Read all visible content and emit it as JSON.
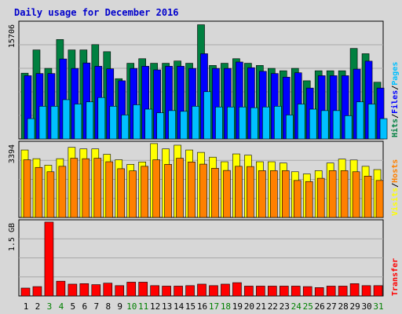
{
  "title": "Daily usage for December 2016",
  "colors": {
    "background": "#d7d7d7",
    "panel_border": "#000000",
    "gridline": "#a8a8a8",
    "title": "#0000cc",
    "hits": "#008040",
    "files": "#0000ff",
    "pages": "#00c0ff",
    "visits": "#ffff00",
    "hosts": "#ff8000",
    "transfer": "#ff0000",
    "weekend_label": "#008000",
    "weekday_label": "#000000"
  },
  "chart_data": [
    {
      "type": "bar",
      "panel": "hits_files_pages",
      "ylabel": "15706",
      "ylim": [
        0,
        15706
      ],
      "grid": true,
      "legend": [
        "Hits",
        "Files",
        "Pages"
      ],
      "legend_placement": "right-vertical",
      "categories": [
        "1",
        "2",
        "3",
        "4",
        "5",
        "6",
        "7",
        "8",
        "9",
        "10",
        "11",
        "12",
        "13",
        "14",
        "15",
        "16",
        "17",
        "18",
        "19",
        "20",
        "21",
        "22",
        "23",
        "24",
        "25",
        "26",
        "27",
        "28",
        "29",
        "30",
        "31"
      ],
      "series": [
        {
          "name": "Hits",
          "values": [
            9045,
            12244,
            9708,
            13674,
            12244,
            12244,
            12976,
            12000,
            8287,
            10409,
            11036,
            10409,
            10409,
            10720,
            10409,
            15706,
            10107,
            10409,
            11036,
            10409,
            10107,
            9708,
            9377,
            9708,
            8000,
            9377,
            9377,
            9377,
            12446,
            11722,
            7800
          ]
        },
        {
          "name": "Files",
          "values": [
            8700,
            9000,
            9000,
            11000,
            9700,
            10450,
            10000,
            9645,
            8000,
            9700,
            10000,
            9500,
            10000,
            10000,
            9700,
            11722,
            9700,
            9700,
            10580,
            9800,
            9300,
            9000,
            8500,
            9100,
            7000,
            8700,
            8700,
            8700,
            9600,
            10700,
            7000
          ]
        },
        {
          "name": "Pages",
          "values": [
            2800,
            4500,
            4500,
            5400,
            4800,
            5100,
            5700,
            4500,
            3300,
            4700,
            4100,
            3600,
            3900,
            3800,
            4500,
            6500,
            4400,
            4400,
            4400,
            4300,
            4400,
            4500,
            3300,
            4800,
            4100,
            3900,
            3900,
            3200,
            5100,
            4800,
            2800
          ]
        }
      ]
    },
    {
      "type": "bar",
      "panel": "visits_hosts",
      "ylabel": "3394",
      "ylim": [
        0,
        3394
      ],
      "grid": true,
      "legend": [
        "Visits",
        "Hosts"
      ],
      "legend_placement": "right-vertical",
      "categories": [
        "1",
        "2",
        "3",
        "4",
        "5",
        "6",
        "7",
        "8",
        "9",
        "10",
        "11",
        "12",
        "13",
        "14",
        "15",
        "16",
        "17",
        "18",
        "19",
        "20",
        "21",
        "22",
        "23",
        "24",
        "25",
        "26",
        "27",
        "28",
        "29",
        "30",
        "31"
      ],
      "series": [
        {
          "name": "Visits",
          "values": [
            3100,
            2700,
            2400,
            2700,
            3220,
            3150,
            3150,
            2900,
            2650,
            2440,
            2550,
            3394,
            3150,
            3320,
            3100,
            2990,
            2770,
            2560,
            2920,
            2860,
            2560,
            2560,
            2500,
            2100,
            2000,
            2150,
            2500,
            2680,
            2640,
            2350,
            2200
          ]
        },
        {
          "name": "Hosts",
          "values": [
            2650,
            2300,
            2100,
            2350,
            2720,
            2700,
            2720,
            2560,
            2240,
            2140,
            2350,
            2650,
            2440,
            2720,
            2550,
            2450,
            2260,
            2160,
            2350,
            2340,
            2150,
            2150,
            2150,
            1700,
            1650,
            1800,
            2150,
            2150,
            2100,
            1900,
            1700
          ]
        }
      ]
    },
    {
      "type": "bar",
      "panel": "transfer",
      "ylabel": "1.5 GB",
      "ylim": [
        0,
        1.5
      ],
      "grid": true,
      "legend": [
        "Transfer"
      ],
      "legend_placement": "right-vertical",
      "categories": [
        "1",
        "2",
        "3",
        "4",
        "5",
        "6",
        "7",
        "8",
        "9",
        "10",
        "11",
        "12",
        "13",
        "14",
        "15",
        "16",
        "17",
        "18",
        "19",
        "20",
        "21",
        "22",
        "23",
        "24",
        "25",
        "26",
        "27",
        "28",
        "29",
        "30",
        "31"
      ],
      "series": [
        {
          "name": "Transfer",
          "values": [
            0.16,
            0.19,
            1.5,
            0.3,
            0.24,
            0.25,
            0.23,
            0.26,
            0.21,
            0.28,
            0.28,
            0.21,
            0.2,
            0.2,
            0.21,
            0.24,
            0.21,
            0.24,
            0.27,
            0.2,
            0.2,
            0.2,
            0.2,
            0.2,
            0.19,
            0.17,
            0.2,
            0.2,
            0.25,
            0.21,
            0.21
          ]
        }
      ]
    }
  ],
  "day_labels": [
    "1",
    "2",
    "3",
    "4",
    "5",
    "6",
    "7",
    "8",
    "9",
    "10",
    "11",
    "12",
    "13",
    "14",
    "15",
    "16",
    "17",
    "18",
    "19",
    "20",
    "21",
    "22",
    "23",
    "24",
    "25",
    "26",
    "27",
    "28",
    "29",
    "30",
    "31"
  ],
  "weekend_days": [
    "3",
    "4",
    "10",
    "11",
    "17",
    "18",
    "24",
    "25",
    "31"
  ]
}
